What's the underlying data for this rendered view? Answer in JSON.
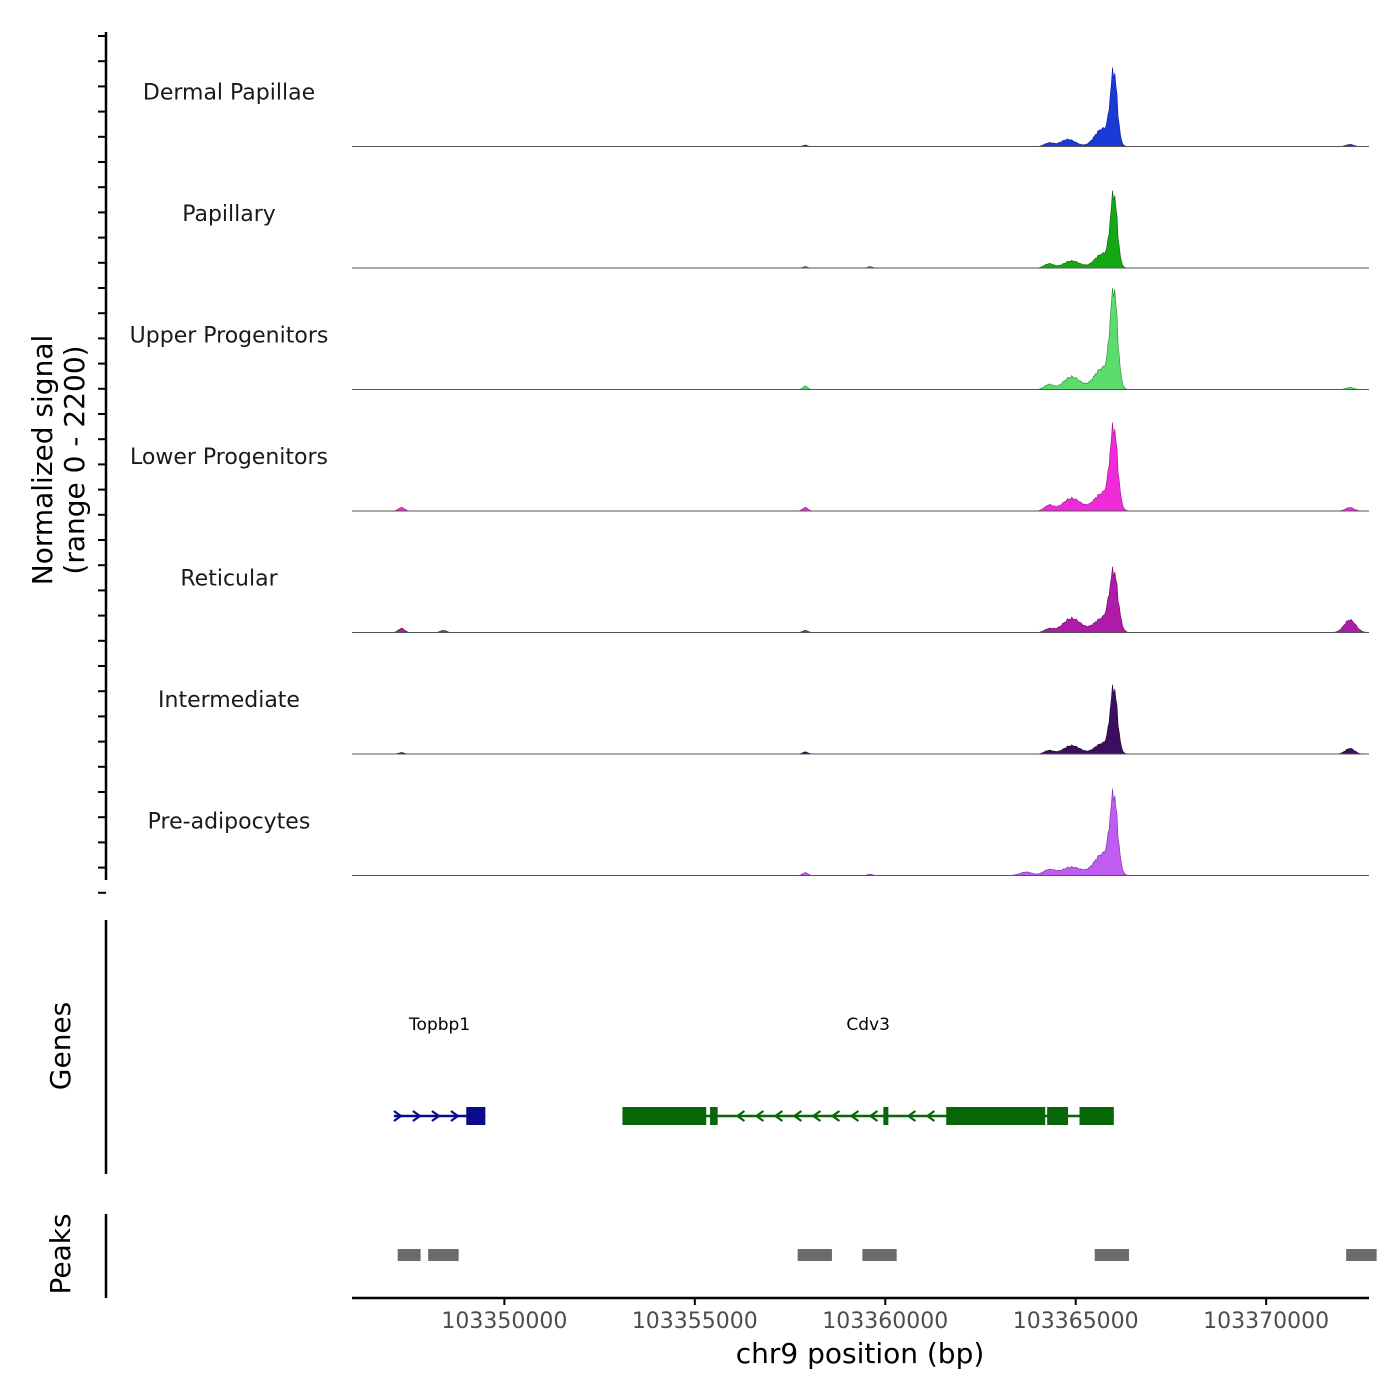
{
  "chart_data": {
    "type": "coverage-track",
    "region": {
      "chromosome": "chr9",
      "start": 103346000,
      "end": 103372700
    },
    "ylabel": {
      "line1": "Normalized signal",
      "line2": "(range 0 - 2200)"
    },
    "yrange": [
      0,
      2200
    ],
    "xlabel": "chr9 position (bp)",
    "xticks": [
      103350000,
      103355000,
      103360000,
      103365000,
      103370000
    ],
    "xtick_labels": [
      "103350000",
      "103355000",
      "103360000",
      "103365000",
      "103370000"
    ],
    "tracks": [
      {
        "name": "Dermal Papillae",
        "color": "#1a3ad8",
        "outline": "#0d1f8a",
        "peaks": [
          [
            103366000,
            1.0,
            90
          ],
          [
            103365700,
            0.25,
            200
          ],
          [
            103364800,
            0.1,
            200
          ],
          [
            103364300,
            0.05,
            120
          ],
          [
            103357900,
            0.02,
            60
          ],
          [
            103372200,
            0.03,
            100
          ]
        ]
      },
      {
        "name": "Papillary",
        "color": "#15a815",
        "outline": "#0a5a0a",
        "peaks": [
          [
            103366000,
            1.0,
            90
          ],
          [
            103365700,
            0.2,
            200
          ],
          [
            103364900,
            0.1,
            220
          ],
          [
            103364300,
            0.06,
            120
          ],
          [
            103357900,
            0.02,
            60
          ],
          [
            103359600,
            0.02,
            60
          ]
        ]
      },
      {
        "name": "Upper Progenitors",
        "color": "#5cdc6c",
        "outline": "#2a8a35",
        "peaks": [
          [
            103366000,
            1.35,
            95
          ],
          [
            103365700,
            0.3,
            220
          ],
          [
            103364900,
            0.18,
            220
          ],
          [
            103364300,
            0.07,
            120
          ],
          [
            103357900,
            0.05,
            60
          ],
          [
            103372200,
            0.03,
            100
          ]
        ]
      },
      {
        "name": "Lower Progenitors",
        "color": "#f02ad8",
        "outline": "#9a1a8a",
        "peaks": [
          [
            103366000,
            1.1,
            100
          ],
          [
            103365700,
            0.25,
            220
          ],
          [
            103364900,
            0.18,
            240
          ],
          [
            103364300,
            0.08,
            120
          ],
          [
            103347300,
            0.05,
            80
          ],
          [
            103357900,
            0.05,
            70
          ],
          [
            103372200,
            0.05,
            110
          ]
        ]
      },
      {
        "name": "Reticular",
        "color": "#b01aa8",
        "outline": "#5e0c5a",
        "peaks": [
          [
            103366000,
            0.8,
            110
          ],
          [
            103365700,
            0.2,
            220
          ],
          [
            103364900,
            0.2,
            240
          ],
          [
            103364300,
            0.05,
            120
          ],
          [
            103347300,
            0.06,
            80
          ],
          [
            103348400,
            0.03,
            80
          ],
          [
            103357900,
            0.03,
            70
          ],
          [
            103372200,
            0.18,
            150
          ]
        ]
      },
      {
        "name": "Intermediate",
        "color": "#3b0f5e",
        "outline": "#1d0730",
        "peaks": [
          [
            103366000,
            0.9,
            95
          ],
          [
            103365700,
            0.15,
            200
          ],
          [
            103364900,
            0.12,
            220
          ],
          [
            103364300,
            0.05,
            120
          ],
          [
            103357900,
            0.03,
            70
          ],
          [
            103372200,
            0.08,
            120
          ],
          [
            103347300,
            0.02,
            70
          ]
        ]
      },
      {
        "name": "Pre-adipocytes",
        "color": "#c05cf0",
        "outline": "#7a30a0",
        "peaks": [
          [
            103366000,
            1.05,
            100
          ],
          [
            103365700,
            0.3,
            220
          ],
          [
            103364900,
            0.12,
            260
          ],
          [
            103364300,
            0.08,
            160
          ],
          [
            103363700,
            0.05,
            160
          ],
          [
            103357900,
            0.04,
            70
          ],
          [
            103359600,
            0.02,
            60
          ]
        ]
      }
    ],
    "genes_track_label": "Genes",
    "genes": [
      {
        "name": "Topbp1",
        "strand": "+",
        "color": "#0a0a8c",
        "start": 103347100,
        "end": 103349500,
        "exons": [
          [
            103349000,
            103349500
          ]
        ]
      },
      {
        "name": "Cdv3",
        "strand": "-",
        "color": "#076607",
        "start": 103353100,
        "end": 103366000,
        "exons": [
          [
            103353100,
            103355300
          ],
          [
            103355400,
            103355600
          ],
          [
            103359950,
            103360050
          ],
          [
            103361600,
            103364200
          ],
          [
            103364250,
            103364800
          ],
          [
            103365100,
            103366000
          ]
        ]
      }
    ],
    "peaks_track_label": "Peaks",
    "peak_regions": [
      [
        103347200,
        103347800
      ],
      [
        103348000,
        103348800
      ],
      [
        103357700,
        103358600
      ],
      [
        103359400,
        103360300
      ],
      [
        103365500,
        103366400
      ],
      [
        103372100,
        103372900
      ]
    ]
  }
}
